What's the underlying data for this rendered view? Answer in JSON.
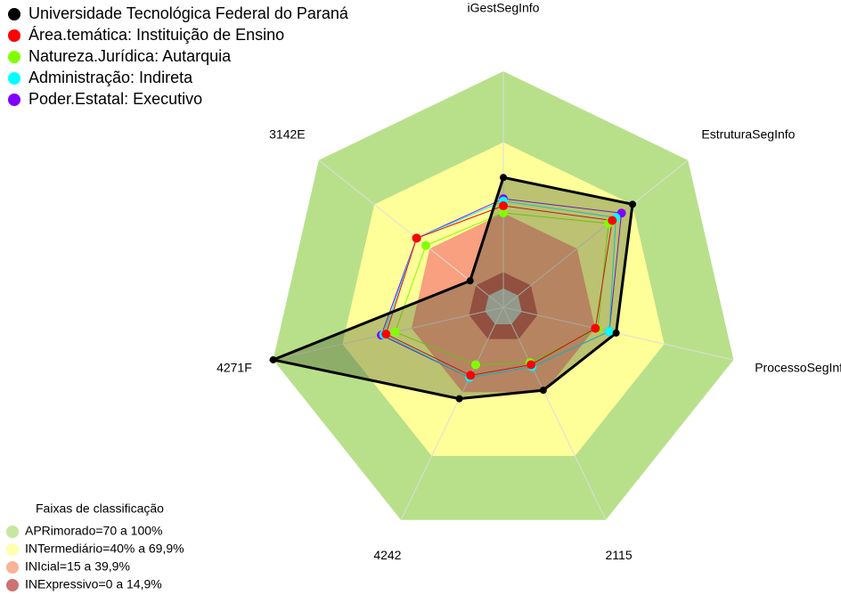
{
  "chart_data": {
    "type": "radar",
    "categories": [
      "iGestSegInfo",
      "EstruturaSegInfo",
      "ProcessoSegInfo",
      "2115",
      "4242",
      "4271F",
      "3142E"
    ],
    "ylim": [
      0,
      100
    ],
    "series": [
      {
        "name": "Universidade Tecnológica Federal do Paraná",
        "color": "#000000",
        "values": [
          55,
          70,
          49,
          39,
          43,
          100,
          18
        ]
      },
      {
        "name": "Área.temática: Instituição de Ensino",
        "color": "#ff0000",
        "values": [
          43,
          59,
          40,
          27,
          32,
          51,
          47
        ]
      },
      {
        "name": "Natureza.Jurídica: Autarquia",
        "color": "#80ff00",
        "values": [
          40,
          57,
          41,
          26,
          27,
          47,
          42
        ]
      },
      {
        "name": "Administração: Indireta",
        "color": "#00ffff",
        "values": [
          45,
          61,
          46,
          28,
          33,
          52,
          47
        ]
      },
      {
        "name": "Poder.Estatal: Executivo",
        "color": "#8000ff",
        "values": [
          46,
          64,
          46,
          28,
          33,
          53,
          47
        ]
      }
    ],
    "bands_title": "Faixas de classificação",
    "bands": [
      {
        "label": "APRimorado=70 a 100%",
        "color": "#b8e08a",
        "max": 100
      },
      {
        "label": "INTermediário=40% a 69,9%",
        "color": "#ffff99",
        "max": 69.9
      },
      {
        "label": "INIcial=15 a 39,9%",
        "color": "#f8a080",
        "max": 39.9
      },
      {
        "label": "INExpressivo=0 a 14,9%",
        "color": "#c0504d",
        "max": 14.9
      }
    ]
  }
}
